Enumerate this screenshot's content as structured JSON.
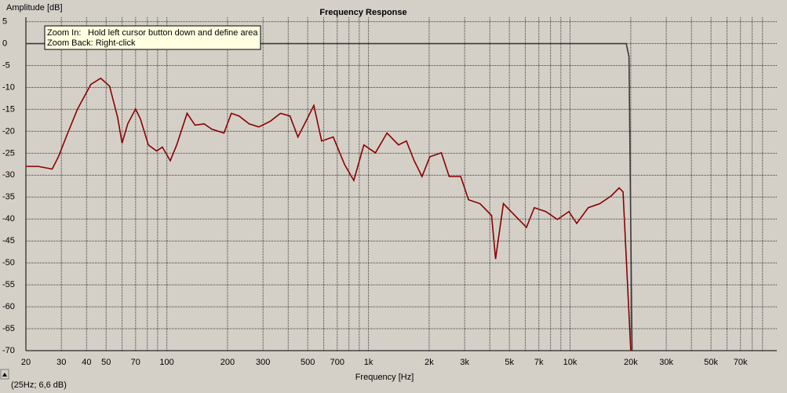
{
  "chart_data": {
    "type": "line",
    "title": "Frequency Response",
    "ylabel": "Amplitude [dB]",
    "xlabel": "Frequency [Hz]",
    "xscale": "log",
    "grid": true,
    "xlim": [
      20,
      106000
    ],
    "ylim": [
      -70,
      6
    ],
    "xticks": [
      20,
      30,
      40,
      50,
      70,
      100,
      200,
      300,
      500,
      700,
      {
        "value": 1000,
        "label": "1k"
      },
      {
        "value": 2000,
        "label": "2k"
      },
      {
        "value": 3000,
        "label": "3k"
      },
      {
        "value": 5000,
        "label": "5k"
      },
      {
        "value": 7000,
        "label": "7k"
      },
      {
        "value": 10000,
        "label": "10k"
      },
      {
        "value": 20000,
        "label": "20k"
      },
      {
        "value": 30000,
        "label": "30k"
      },
      {
        "value": 50000,
        "label": "50k"
      },
      {
        "value": 70000,
        "label": "70k"
      }
    ],
    "minor_xticks": [
      60,
      80,
      90,
      400,
      600,
      800,
      900,
      4000,
      6000,
      8000,
      9000,
      40000,
      60000,
      80000,
      90000
    ],
    "yticks": [
      5,
      0,
      -5,
      -10,
      -15,
      -20,
      -25,
      -30,
      -35,
      -40,
      -45,
      -50,
      -55,
      -60,
      -65,
      -70
    ],
    "series": [
      {
        "color": "#3a3a3a",
        "x": [
          20,
          19000,
          19600,
          20300
        ],
        "values": [
          0,
          0,
          -3,
          -70
        ]
      },
      {
        "color": "#8b0000",
        "x": [
          20,
          23,
          27,
          29,
          32,
          36,
          42,
          47,
          52,
          57,
          60,
          64,
          70,
          74,
          81,
          89,
          95,
          104,
          112,
          126,
          138,
          153,
          167,
          192,
          209,
          228,
          256,
          286,
          326,
          366,
          408,
          447,
          490,
          536,
          586,
          669,
          762,
          846,
          949,
          1083,
          1236,
          1410,
          1542,
          1686,
          1844,
          2016,
          2300,
          2514,
          2868,
          3136,
          3578,
          4082,
          4270,
          4670,
          5328,
          6078,
          6646,
          7583,
          8650,
          9868,
          10790,
          12310,
          14040,
          16020,
          17510,
          18310,
          20000
        ],
        "values": [
          -28,
          -28,
          -28.6,
          -25.8,
          -20.8,
          -15,
          -9.3,
          -7.9,
          -9.7,
          -16.8,
          -22.7,
          -18.3,
          -14.9,
          -17.2,
          -23.1,
          -24.5,
          -23.6,
          -26.7,
          -23.1,
          -15.9,
          -18.6,
          -18.3,
          -19.5,
          -20.4,
          -15.9,
          -16.5,
          -18.3,
          -19,
          -17.7,
          -15.9,
          -16.5,
          -21.3,
          -17.7,
          -14.1,
          -22.2,
          -21.3,
          -27.6,
          -31.2,
          -23.1,
          -24.9,
          -20.4,
          -23.1,
          -22.2,
          -26.7,
          -30.3,
          -25.8,
          -24.9,
          -30.3,
          -30.3,
          -35.6,
          -36.5,
          -39.2,
          -49.1,
          -36.5,
          -39.2,
          -41.9,
          -37.4,
          -38.3,
          -40.1,
          -38.3,
          -41,
          -37.4,
          -36.5,
          -34.7,
          -32.9,
          -33.8,
          -70
        ]
      }
    ]
  },
  "ui": {
    "tooltip_lines": [
      "Zoom In:",
      "Hold left cursor button down and define area",
      "Zoom Back: Right-click"
    ],
    "status": "(25Hz; 6,6 dB)"
  }
}
